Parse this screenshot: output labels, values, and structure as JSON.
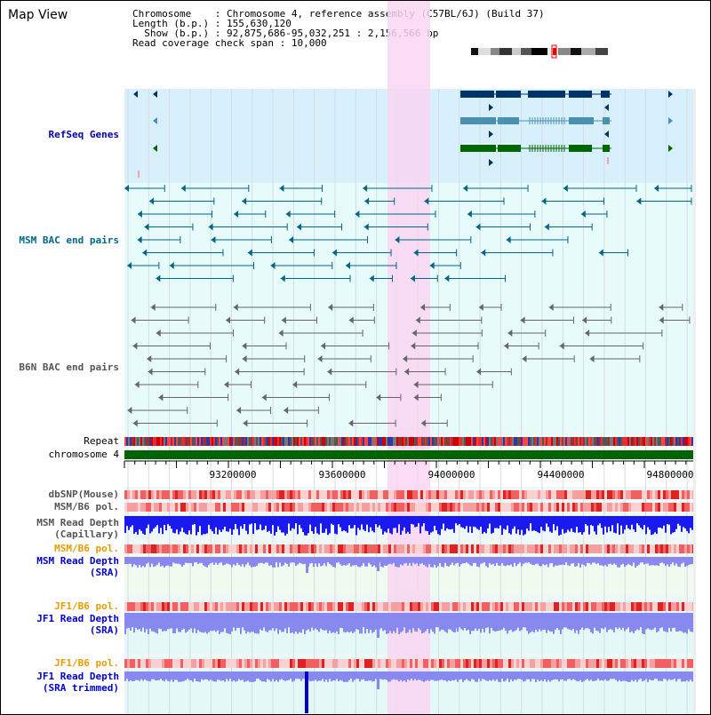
{
  "view": {
    "title": "Map View"
  },
  "info": {
    "chromosome_label": "Chromosome",
    "chromosome_value": "Chromosome 4, reference assembly (C57BL/6J) (Build 37)",
    "length_label": "Length (b.p.)",
    "length_value": "155,630,120",
    "show_label": "Show (b.p.)",
    "show_value": "92,875,686-95,032,251 : 2,156,566 bp",
    "coverage_label": "Read coverage check span",
    "coverage_value": "10,000"
  },
  "tracks": {
    "refseq": "RefSeq Genes",
    "msm_bac": "MSM BAC end pairs",
    "b6n_bac": "B6N BAC end pairs",
    "repeat": "Repeat",
    "chromosome": "chromosome 4",
    "dbsnp": "dbSNP(Mouse)",
    "msm_pol_1": "MSM/B6 pol.",
    "msm_depth_cap_1": "MSM Read Depth",
    "msm_depth_cap_2": "(Capillary)",
    "msm_pol_2": "MSM/B6 pol.",
    "msm_depth_sra_1": "MSM Read Depth",
    "msm_depth_sra_2": "(SRA)",
    "jf1_pol_1": "JF1/B6 pol.",
    "jf1_depth_sra_1": "JF1 Read Depth",
    "jf1_depth_sra_2": "(SRA)",
    "jf1_pol_2": "JF1/B6 pol.",
    "jf1_depth_trim_1": "JF1 Read Depth",
    "jf1_depth_trim_2": "(SRA trimmed)"
  },
  "ruler": {
    "ticks": [
      "93200000",
      "93600000",
      "94000000",
      "94400000",
      "94800000"
    ]
  },
  "colors": {
    "refseq_bg": "#d8f0fb",
    "bac_bg": "#e8fbfb",
    "highlight": "#f9d6f2",
    "chromosome_bar": "#006400",
    "depth_capillary": "#1a1aee",
    "depth_sra": "#8888ee",
    "refseq_navy": "#003366",
    "refseq_teal": "#4a90b0",
    "refseq_green": "#006600",
    "msm_bac": "#006688",
    "b6n_bac": "#666666"
  }
}
